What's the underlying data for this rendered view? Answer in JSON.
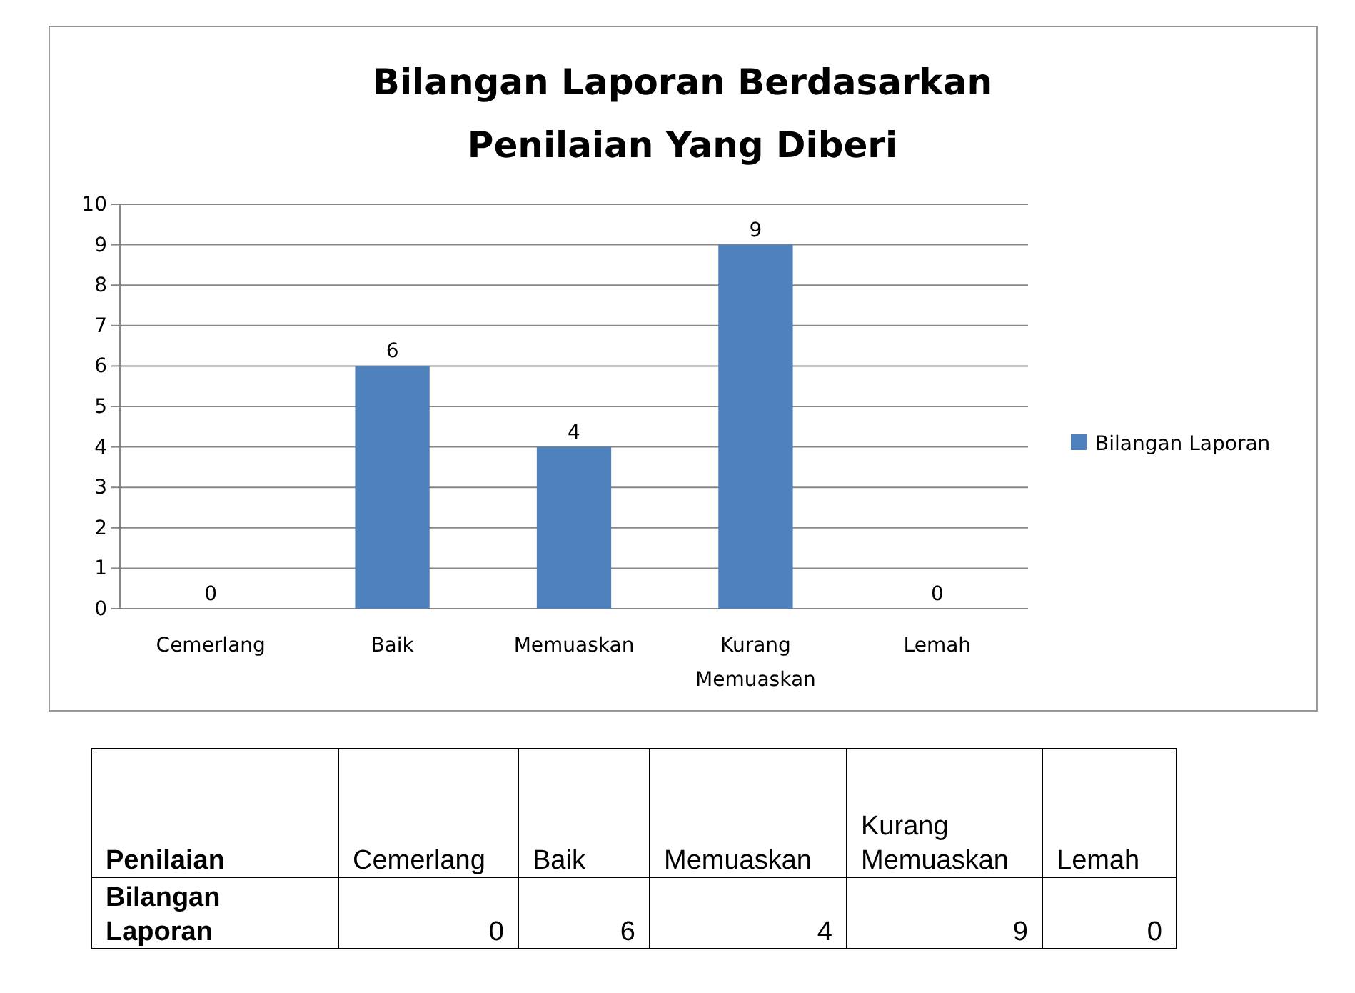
{
  "chart_data": [
    {
      "type": "bar",
      "title": "Bilangan Laporan Berdasarkan\nPenilaian Yang Diberi",
      "categories": [
        "Cemerlang",
        "Baik",
        "Memuaskan",
        "Kurang Memuaskan",
        "Lemah"
      ],
      "series": [
        {
          "name": "Bilangan Laporan",
          "color": "#4f81bd",
          "values": [
            0,
            6,
            4,
            9,
            0
          ]
        }
      ],
      "ylim": [
        0,
        10
      ],
      "yticks": [
        0,
        1,
        2,
        3,
        4,
        5,
        6,
        7,
        8,
        9,
        10
      ],
      "grid": "y",
      "legend": "right",
      "data_labels": true
    },
    {
      "type": "other",
      "categories": [
        "Cemerlang",
        "Baik",
        "Memuaskan",
        "Kurang Memuaskan",
        "Lemah"
      ],
      "series": [
        {
          "name": "Bilangan Laporan",
          "values": [
            0,
            6,
            4,
            9,
            0
          ]
        }
      ],
      "data_labels": true,
      "annotations": [
        "Penilaian"
      ]
    }
  ]
}
